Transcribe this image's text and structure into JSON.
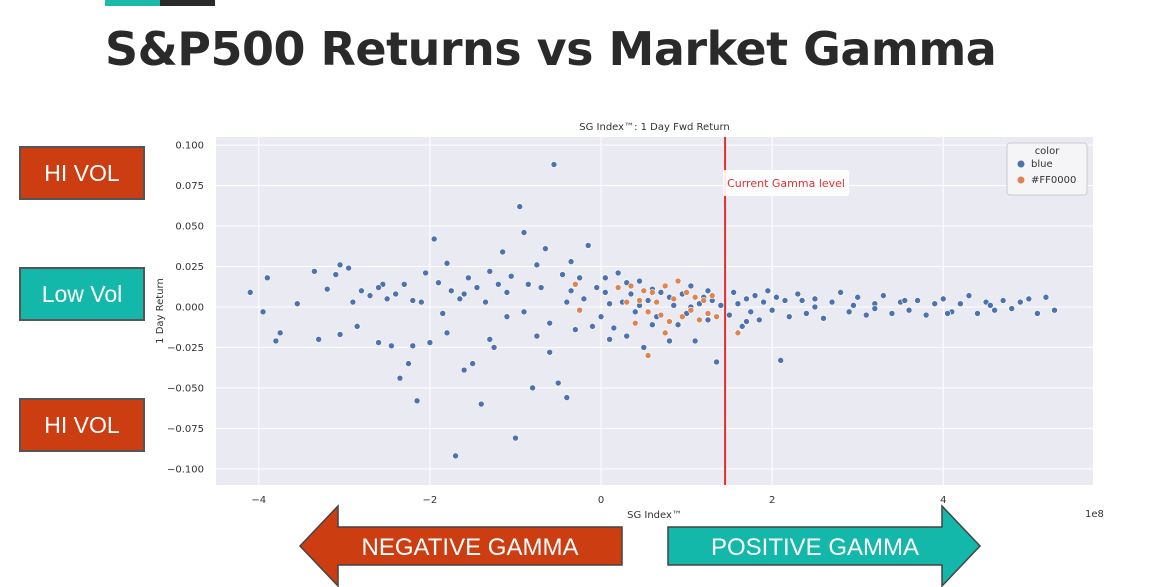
{
  "slide": {
    "title": "S&P500 Returns vs Market Gamma",
    "accent_colors": [
      "#1bb9a8",
      "#2a2a2a"
    ]
  },
  "side_labels": {
    "top": "HI VOL",
    "middle": "Low Vol",
    "bottom": "HI VOL"
  },
  "arrows": {
    "left": "NEGATIVE GAMMA",
    "right": "POSITIVE GAMMA",
    "left_color": "#cc3d12",
    "right_color": "#13b8ab"
  },
  "chart_data": {
    "type": "scatter",
    "title": "SG Index™: 1 Day Fwd Return",
    "xlabel": "SG Index™",
    "ylabel": "1 Day Return",
    "x_scale_label": "1e8",
    "xlim": [
      -4.5,
      5.75
    ],
    "ylim": [
      -0.11,
      0.105
    ],
    "x_ticks": [
      -4,
      -2,
      0,
      2,
      4
    ],
    "x_tick_labels": [
      "−4",
      "−2",
      "0",
      "2",
      "4"
    ],
    "y_ticks": [
      0.1,
      0.075,
      0.05,
      0.025,
      0.0,
      -0.025,
      -0.05,
      -0.075,
      -0.1
    ],
    "y_tick_labels": [
      "0.100",
      "0.075",
      "0.050",
      "0.025",
      "0.000",
      "−0.025",
      "−0.050",
      "−0.075",
      "−0.100"
    ],
    "grid": true,
    "legend": {
      "title": "color",
      "placement": "top-right",
      "entries": [
        {
          "label": "blue",
          "color": "#4c72b0"
        },
        {
          "label": "#FF0000",
          "color": "#dd8452"
        }
      ]
    },
    "vline": {
      "x": 1.45,
      "color": "#e03030",
      "label": "Current Gamma level"
    },
    "series": [
      {
        "name": "blue",
        "color": "#4c72b0",
        "points": [
          [
            -4.1,
            0.009
          ],
          [
            -3.9,
            0.018
          ],
          [
            -3.95,
            -0.003
          ],
          [
            -3.8,
            -0.021
          ],
          [
            -3.75,
            -0.016
          ],
          [
            -3.55,
            0.002
          ],
          [
            -3.35,
            0.022
          ],
          [
            -3.3,
            -0.02
          ],
          [
            -3.2,
            0.011
          ],
          [
            -3.1,
            0.02
          ],
          [
            -3.05,
            0.026
          ],
          [
            -2.95,
            0.024
          ],
          [
            -3.05,
            -0.017
          ],
          [
            -2.9,
            0.003
          ],
          [
            -2.85,
            -0.012
          ],
          [
            -2.7,
            0.007
          ],
          [
            -2.6,
            -0.022
          ],
          [
            -2.55,
            0.014
          ],
          [
            -2.45,
            -0.024
          ],
          [
            -2.4,
            0.008
          ],
          [
            -2.35,
            -0.044
          ],
          [
            -2.3,
            0.014
          ],
          [
            -2.25,
            -0.035
          ],
          [
            -2.2,
            -0.024
          ],
          [
            -2.15,
            -0.058
          ],
          [
            -2.1,
            0.003
          ],
          [
            -2.05,
            0.021
          ],
          [
            -2.0,
            -0.022
          ],
          [
            -1.95,
            0.042
          ],
          [
            -1.9,
            0.015
          ],
          [
            -1.85,
            -0.004
          ],
          [
            -1.8,
            0.027
          ],
          [
            -1.75,
            0.01
          ],
          [
            -1.7,
            -0.092
          ],
          [
            -1.65,
            0.005
          ],
          [
            -1.6,
            -0.039
          ],
          [
            -1.55,
            0.018
          ],
          [
            -1.5,
            -0.035
          ],
          [
            -1.45,
            0.012
          ],
          [
            -1.4,
            -0.06
          ],
          [
            -1.35,
            0.003
          ],
          [
            -1.3,
            0.022
          ],
          [
            -1.25,
            -0.025
          ],
          [
            -1.2,
            0.014
          ],
          [
            -1.15,
            0.034
          ],
          [
            -1.1,
            -0.006
          ],
          [
            -1.05,
            0.019
          ],
          [
            -1.0,
            -0.081
          ],
          [
            -0.95,
            0.062
          ],
          [
            -0.9,
            0.046
          ],
          [
            -0.85,
            0.014
          ],
          [
            -0.8,
            -0.05
          ],
          [
            -0.75,
            0.026
          ],
          [
            -0.7,
            0.012
          ],
          [
            -0.65,
            0.036
          ],
          [
            -0.6,
            -0.01
          ],
          [
            -0.55,
            0.088
          ],
          [
            -0.5,
            -0.047
          ],
          [
            -0.45,
            0.02
          ],
          [
            -0.4,
            -0.056
          ],
          [
            -0.35,
            0.01
          ],
          [
            -0.3,
            -0.014
          ],
          [
            -0.25,
            0.018
          ],
          [
            -0.2,
            0.005
          ],
          [
            -0.15,
            0.038
          ],
          [
            -0.1,
            -0.012
          ],
          [
            -0.05,
            0.012
          ],
          [
            0.0,
            -0.006
          ],
          [
            0.05,
            0.009
          ],
          [
            0.1,
            0.002
          ],
          [
            0.15,
            -0.013
          ],
          [
            0.2,
            0.021
          ],
          [
            0.25,
            0.003
          ],
          [
            0.3,
            -0.018
          ],
          [
            0.35,
            0.008
          ],
          [
            0.4,
            -0.003
          ],
          [
            0.45,
            0.016
          ],
          [
            0.5,
            -0.025
          ],
          [
            0.55,
            0.004
          ],
          [
            0.6,
            0.011
          ],
          [
            0.65,
            -0.006
          ],
          [
            0.7,
            0.009
          ],
          [
            0.75,
            -0.016
          ],
          [
            0.8,
            0.006
          ],
          [
            0.85,
            0.001
          ],
          [
            0.9,
            -0.011
          ],
          [
            0.95,
            0.008
          ],
          [
            1.0,
            -0.004
          ],
          [
            1.05,
            0.013
          ],
          [
            1.1,
            -0.021
          ],
          [
            1.15,
            0.002
          ],
          [
            1.2,
            0.006
          ],
          [
            1.25,
            -0.008
          ],
          [
            1.3,
            0.004
          ],
          [
            1.35,
            -0.034
          ],
          [
            1.4,
            0.001
          ],
          [
            1.5,
            -0.005
          ],
          [
            1.55,
            0.009
          ],
          [
            1.6,
            0.002
          ],
          [
            1.65,
            -0.012
          ],
          [
            1.7,
            0.005
          ],
          [
            1.75,
            -0.003
          ],
          [
            1.8,
            0.007
          ],
          [
            1.85,
            -0.008
          ],
          [
            1.9,
            0.003
          ],
          [
            1.95,
            0.01
          ],
          [
            2.0,
            -0.002
          ],
          [
            2.05,
            0.006
          ],
          [
            2.1,
            -0.033
          ],
          [
            2.15,
            0.004
          ],
          [
            2.2,
            -0.006
          ],
          [
            2.3,
            0.008
          ],
          [
            2.4,
            -0.004
          ],
          [
            2.5,
            0.005
          ],
          [
            2.6,
            -0.007
          ],
          [
            2.7,
            0.003
          ],
          [
            2.8,
            0.009
          ],
          [
            2.9,
            -0.003
          ],
          [
            3.0,
            0.006
          ],
          [
            3.1,
            -0.005
          ],
          [
            3.2,
            0.002
          ],
          [
            3.3,
            0.007
          ],
          [
            3.4,
            -0.004
          ],
          [
            3.5,
            0.003
          ],
          [
            3.6,
            -0.002
          ],
          [
            3.7,
            0.004
          ],
          [
            3.8,
            -0.005
          ],
          [
            3.9,
            0.002
          ],
          [
            4.0,
            0.005
          ],
          [
            4.1,
            -0.003
          ],
          [
            4.2,
            0.002
          ],
          [
            4.3,
            0.007
          ],
          [
            4.4,
            -0.004
          ],
          [
            4.5,
            0.003
          ],
          [
            4.6,
            -0.002
          ],
          [
            4.7,
            0.004
          ],
          [
            4.8,
            -0.001
          ],
          [
            4.9,
            0.003
          ],
          [
            5.0,
            0.005
          ],
          [
            5.1,
            -0.004
          ],
          [
            5.2,
            0.006
          ],
          [
            5.3,
            -0.002
          ],
          [
            2.5,
            0.0
          ],
          [
            3.2,
            -0.001
          ],
          [
            -2.8,
            0.01
          ],
          [
            -1.3,
            -0.02
          ],
          [
            -0.6,
            -0.028
          ],
          [
            0.3,
            0.015
          ],
          [
            0.8,
            -0.021
          ],
          [
            -1.8,
            -0.016
          ],
          [
            -2.5,
            0.005
          ],
          [
            -0.9,
            -0.003
          ],
          [
            0.1,
            -0.02
          ],
          [
            0.45,
            0.001
          ],
          [
            1.25,
            0.01
          ],
          [
            -0.35,
            0.028
          ],
          [
            -2.6,
            0.012
          ],
          [
            -2.2,
            0.004
          ],
          [
            -1.6,
            0.008
          ],
          [
            -1.1,
            0.009
          ],
          [
            -0.75,
            -0.018
          ],
          [
            -0.4,
            0.003
          ],
          [
            0.05,
            0.018
          ],
          [
            0.6,
            -0.011
          ],
          [
            1.05,
            0.0
          ],
          [
            1.7,
            -0.009
          ],
          [
            2.35,
            0.004
          ],
          [
            2.95,
            0.001
          ],
          [
            3.55,
            0.004
          ],
          [
            4.05,
            -0.004
          ],
          [
            4.55,
            0.001
          ]
        ]
      },
      {
        "name": "#FF0000",
        "color": "#dd8452",
        "points": [
          [
            -0.3,
            0.014
          ],
          [
            -0.25,
            -0.002
          ],
          [
            0.2,
            0.012
          ],
          [
            0.3,
            0.003
          ],
          [
            0.35,
            0.013
          ],
          [
            0.4,
            -0.01
          ],
          [
            0.5,
            0.01
          ],
          [
            0.55,
            -0.003
          ],
          [
            0.6,
            0.009
          ],
          [
            0.65,
            0.003
          ],
          [
            0.7,
            -0.005
          ],
          [
            0.75,
            0.013
          ],
          [
            0.8,
            -0.009
          ],
          [
            0.85,
            0.005
          ],
          [
            0.9,
            0.016
          ],
          [
            0.95,
            -0.006
          ],
          [
            1.0,
            0.009
          ],
          [
            1.05,
            -0.002
          ],
          [
            1.1,
            0.006
          ],
          [
            1.15,
            -0.008
          ],
          [
            1.2,
            0.004
          ],
          [
            1.3,
            0.007
          ],
          [
            1.35,
            -0.006
          ],
          [
            0.55,
            -0.03
          ],
          [
            1.6,
            -0.016
          ],
          [
            0.75,
            -0.016
          ],
          [
            0.45,
            0.004
          ],
          [
            1.25,
            -0.004
          ]
        ]
      }
    ]
  }
}
